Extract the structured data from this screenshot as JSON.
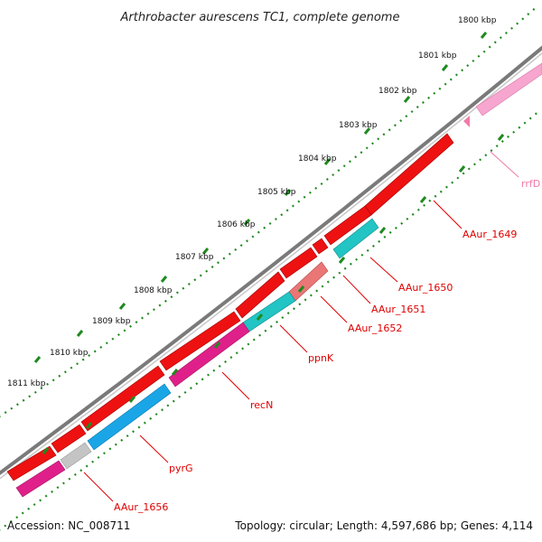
{
  "title": "Arthrobacter aurescens TC1, complete genome",
  "footer": {
    "accession": "Accession: NC_008711",
    "topology": "Topology: circular; Length: 4,597,686 bp; Genes: 4,114"
  },
  "scale_ticks": [
    "1800 kbp",
    "1801 kbp",
    "1802 kbp",
    "1803 kbp",
    "1804 kbp",
    "1805 kbp",
    "1806 kbp",
    "1807 kbp",
    "1808 kbp",
    "1809 kbp",
    "1810 kbp",
    "1811 kbp"
  ],
  "gene_labels": {
    "rrfD": "rrfD",
    "aaur_1649": "AAur_1649",
    "aaur_1650": "AAur_1650",
    "aaur_1651": "AAur_1651",
    "aaur_1652": "AAur_1652",
    "ppnk": "ppnK",
    "recn": "recN",
    "pyrg": "pyrG",
    "aaur_1656": "AAur_1656"
  },
  "colors": {
    "backbone": "#7a7a7a",
    "cds_forward": "#ee1111",
    "cds_reverse_cyan": "#22c4c4",
    "cds_reverse_magenta": "#e0208a",
    "cds_reverse_blue": "#1aa6e6",
    "cds_pink": "#ea7676",
    "rrna": "#f7a6cf",
    "grey_feature": "#c4c4c4",
    "tick_dots": "#1f8a1f",
    "label_text": "#e00000",
    "rrna_label": "#f07aa8"
  }
}
